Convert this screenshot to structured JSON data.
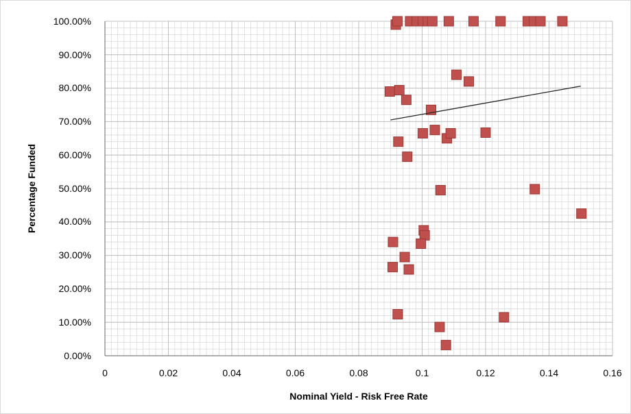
{
  "chart_data": {
    "type": "scatter",
    "xlabel": "Nominal Yield - Risk Free Rate",
    "ylabel": "Percentage Funded",
    "xlim": [
      0,
      0.16
    ],
    "ylim": [
      0,
      1
    ],
    "x_ticks": [
      "0",
      "0.02",
      "0.04",
      "0.06",
      "0.08",
      "0.1",
      "0.12",
      "0.14",
      "0.16"
    ],
    "y_ticks": [
      "0.00%",
      "10.00%",
      "20.00%",
      "30.00%",
      "40.00%",
      "50.00%",
      "60.00%",
      "70.00%",
      "80.00%",
      "90.00%",
      "100.00%"
    ],
    "grid": true,
    "legend": "none",
    "colors": {
      "marker": "#c0504d",
      "marker_edge": "#9b3a37",
      "trendline": "#262626",
      "gridline": "#bfbfbf"
    },
    "series": [
      {
        "points": [
          [
            0.0917,
            0.99
          ],
          [
            0.0922,
            1.0
          ],
          [
            0.0962,
            1.0
          ],
          [
            0.0983,
            1.0
          ],
          [
            0.1002,
            1.0
          ],
          [
            0.1018,
            1.0
          ],
          [
            0.1032,
            1.0
          ],
          [
            0.1084,
            1.0
          ],
          [
            0.1162,
            1.0
          ],
          [
            0.1247,
            1.0
          ],
          [
            0.1333,
            1.0
          ],
          [
            0.1353,
            1.0
          ],
          [
            0.1373,
            1.0
          ],
          [
            0.1442,
            1.0
          ],
          [
            0.1108,
            0.84
          ],
          [
            0.1147,
            0.82
          ],
          [
            0.0898,
            0.79
          ],
          [
            0.0928,
            0.794
          ],
          [
            0.095,
            0.765
          ],
          [
            0.1028,
            0.735
          ],
          [
            0.104,
            0.675
          ],
          [
            0.1002,
            0.665
          ],
          [
            0.1078,
            0.65
          ],
          [
            0.109,
            0.665
          ],
          [
            0.12,
            0.667
          ],
          [
            0.0925,
            0.64
          ],
          [
            0.0953,
            0.595
          ],
          [
            0.1058,
            0.495
          ],
          [
            0.1355,
            0.498
          ],
          [
            0.1502,
            0.425
          ],
          [
            0.1005,
            0.375
          ],
          [
            0.1008,
            0.36
          ],
          [
            0.0908,
            0.34
          ],
          [
            0.0996,
            0.335
          ],
          [
            0.0945,
            0.295
          ],
          [
            0.0907,
            0.265
          ],
          [
            0.0958,
            0.258
          ],
          [
            0.0923,
            0.124
          ],
          [
            0.1258,
            0.115
          ],
          [
            0.1055,
            0.086
          ],
          [
            0.1075,
            0.032
          ]
        ]
      }
    ],
    "trendline": {
      "start": [
        0.09,
        0.705
      ],
      "end": [
        0.15,
        0.806
      ]
    }
  }
}
